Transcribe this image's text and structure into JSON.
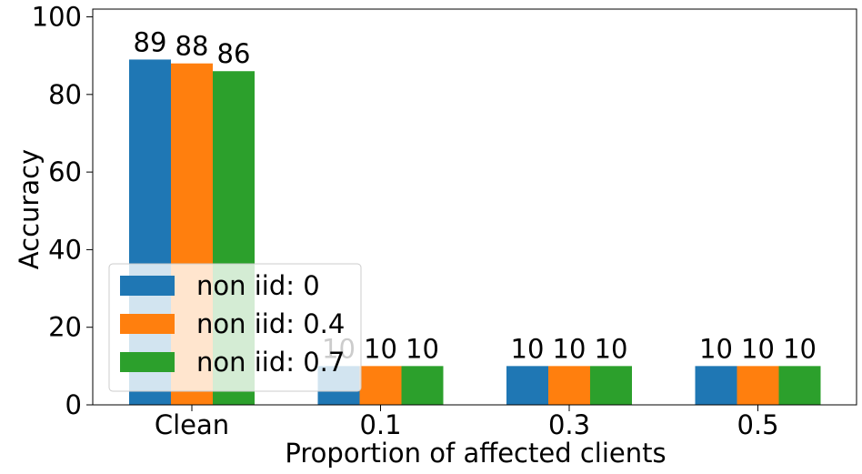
{
  "chart_data": {
    "type": "bar",
    "xlabel": "Proportion of affected clients",
    "ylabel": "Accuracy",
    "categories": [
      "Clean",
      "0.1",
      "0.3",
      "0.5"
    ],
    "ylim": [
      0,
      102
    ],
    "yticks": [
      "0",
      "20",
      "40",
      "60",
      "80",
      "100"
    ],
    "series": [
      {
        "name": "non iid: 0",
        "color": "#1f77b4",
        "values": [
          89,
          10,
          10,
          10
        ],
        "labels": [
          "89",
          "10",
          "10",
          "10"
        ]
      },
      {
        "name": "non iid: 0.4",
        "color": "#ff7f0e",
        "values": [
          88,
          10,
          10,
          10
        ],
        "labels": [
          "88",
          "10",
          "10",
          "10"
        ]
      },
      {
        "name": "non iid: 0.7",
        "color": "#2ca02c",
        "values": [
          86,
          10,
          10,
          10
        ],
        "labels": [
          "86",
          "10",
          "10",
          "10"
        ]
      }
    ],
    "grid": false,
    "legend_position": "lower-left"
  }
}
